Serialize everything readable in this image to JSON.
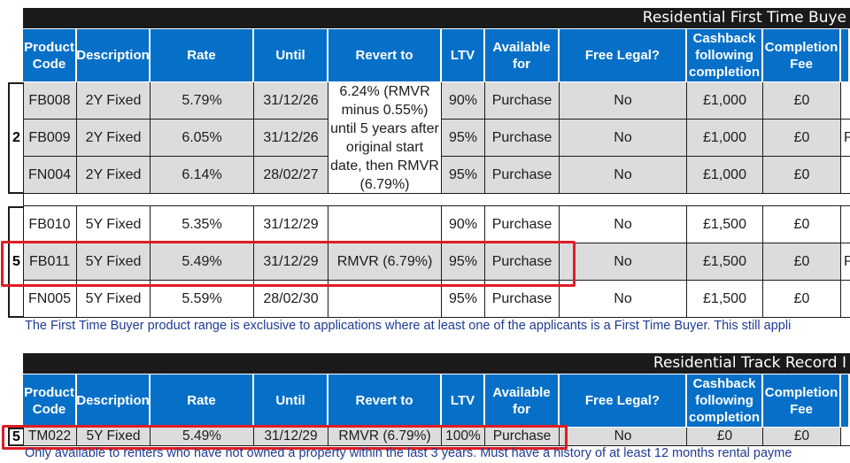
{
  "table1": {
    "title": "Residential First Time Buye",
    "headers": [
      "Product Code",
      "Description",
      "Rate",
      "Until",
      "Revert to",
      "LTV",
      "Available for",
      "Free Legal?",
      "Cashback following completion",
      "Completion Fee"
    ],
    "group_a_label": "2",
    "group_b_label": "5",
    "revert_note": "6.24% (RMVR minus 0.55%) until 5 years after original start date, then RMVR (6.79%)",
    "rows_a": [
      {
        "code": "FB008",
        "desc": "2Y Fixed",
        "rate": "5.79%",
        "until": "31/12/26",
        "ltv": "90%",
        "avail": "Purchase",
        "legal": "No",
        "cashback": "£1,000",
        "fee": "£0"
      },
      {
        "code": "FB009",
        "desc": "2Y Fixed",
        "rate": "6.05%",
        "until": "31/12/26",
        "ltv": "95%",
        "avail": "Purchase",
        "legal": "No",
        "cashback": "£1,000",
        "fee": "£0"
      },
      {
        "code": "FN004",
        "desc": "2Y Fixed",
        "rate": "6.14%",
        "until": "28/02/27",
        "ltv": "95%",
        "avail": "Purchase",
        "legal": "No",
        "cashback": "£1,000",
        "fee": "£0"
      }
    ],
    "rows_b": [
      {
        "code": "FB010",
        "desc": "5Y Fixed",
        "rate": "5.35%",
        "until": "31/12/29",
        "revert": "",
        "ltv": "90%",
        "avail": "Purchase",
        "legal": "No",
        "cashback": "£1,500",
        "fee": "£0"
      },
      {
        "code": "FB011",
        "desc": "5Y Fixed",
        "rate": "5.49%",
        "until": "31/12/29",
        "revert": "RMVR (6.79%)",
        "ltv": "95%",
        "avail": "Purchase",
        "legal": "No",
        "cashback": "£1,500",
        "fee": "£0"
      },
      {
        "code": "FN005",
        "desc": "5Y Fixed",
        "rate": "5.59%",
        "until": "28/02/30",
        "revert": "",
        "ltv": "95%",
        "avail": "Purchase",
        "legal": "No",
        "cashback": "£1,500",
        "fee": "£0"
      }
    ],
    "edge_text_1": "P",
    "edge_text_2": "P",
    "note": "The First Time Buyer product range is exclusive to applications where at least one of the applicants is a First Time Buyer. This still appli"
  },
  "table2": {
    "title": "Residential Track Record I",
    "headers": [
      "Product Code",
      "Description",
      "Rate",
      "Until",
      "Revert to",
      "LTV",
      "Available for",
      "Free Legal?",
      "Cashback following completion",
      "Completion Fee"
    ],
    "group_label": "5",
    "row": {
      "code": "TM022",
      "desc": "5Y Fixed",
      "rate": "5.49%",
      "until": "31/12/29",
      "revert": "RMVR (6.79%)",
      "ltv": "100%",
      "avail": "Purchase",
      "legal": "No",
      "cashback": "£0",
      "fee": "£0"
    },
    "note": "Only available to renters who have not owned a property within the last 3 years. Must have a history of at least 12 months rental payme"
  },
  "colors": {
    "header_blue": "#0670c8",
    "title_black": "#1a1a1a",
    "highlight_red": "#e01d24",
    "row_grey": "#dcdcdc",
    "note_blue": "#1f3a93"
  }
}
